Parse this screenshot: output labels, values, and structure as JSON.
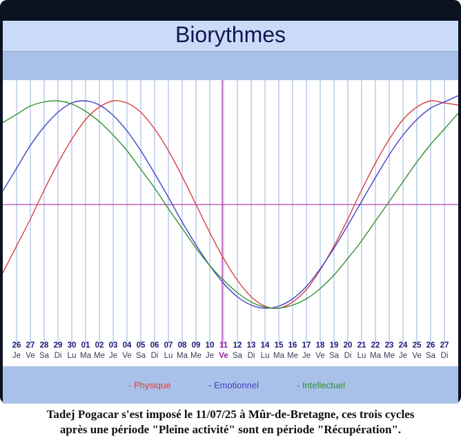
{
  "chart_data": {
    "type": "line",
    "title": "Biorythmes",
    "x_days": [
      "26",
      "27",
      "28",
      "29",
      "30",
      "01",
      "02",
      "03",
      "04",
      "05",
      "06",
      "07",
      "08",
      "09",
      "10",
      "11",
      "12",
      "13",
      "14",
      "15",
      "16",
      "17",
      "18",
      "19",
      "20",
      "21",
      "22",
      "23",
      "24",
      "25",
      "26",
      "27"
    ],
    "x_weekdays": [
      "Je",
      "Ve",
      "Sa",
      "Di",
      "Lu",
      "Ma",
      "Me",
      "Je",
      "Ve",
      "Sa",
      "Di",
      "Lu",
      "Ma",
      "Me",
      "Je",
      "Ve",
      "Sa",
      "Di",
      "Lu",
      "Ma",
      "Me",
      "Je",
      "Ve",
      "Sa",
      "Di",
      "Lu",
      "Ma",
      "Me",
      "Je",
      "Ve",
      "Sa",
      "Di"
    ],
    "highlight_day_index": 15,
    "ylim": [
      -1,
      1
    ],
    "grid": true,
    "series": [
      {
        "name": "Physique",
        "color": "#d84040",
        "values": [
          -0.4,
          -0.14,
          0.14,
          0.4,
          0.63,
          0.82,
          0.94,
          1.0,
          0.98,
          0.89,
          0.73,
          0.52,
          0.27,
          0.0,
          -0.27,
          -0.52,
          -0.73,
          -0.89,
          -0.98,
          -1.0,
          -0.94,
          -0.82,
          -0.63,
          -0.4,
          -0.14,
          0.14,
          0.4,
          0.63,
          0.82,
          0.94,
          1.0,
          0.98
        ]
      },
      {
        "name": "Emotionnel",
        "color": "#4040c8",
        "values": [
          0.35,
          0.57,
          0.75,
          0.89,
          0.98,
          1.0,
          0.96,
          0.86,
          0.71,
          0.52,
          0.3,
          0.07,
          -0.17,
          -0.39,
          -0.59,
          -0.76,
          -0.89,
          -0.97,
          -1.0,
          -0.98,
          -0.91,
          -0.79,
          -0.62,
          -0.42,
          -0.2,
          0.03,
          0.26,
          0.48,
          0.67,
          0.82,
          0.93,
          0.99
        ]
      },
      {
        "name": "Intellectuel",
        "color": "#309030",
        "values": [
          0.87,
          0.95,
          0.99,
          1.0,
          0.97,
          0.9,
          0.8,
          0.67,
          0.52,
          0.34,
          0.16,
          -0.04,
          -0.23,
          -0.42,
          -0.59,
          -0.73,
          -0.85,
          -0.94,
          -0.99,
          -1.0,
          -0.97,
          -0.91,
          -0.81,
          -0.68,
          -0.52,
          -0.35,
          -0.16,
          0.03,
          0.22,
          0.41,
          0.58,
          0.73
        ]
      }
    ],
    "legend": [
      "- Physique",
      "- Emotionnel",
      "- Intellectuel"
    ],
    "legend_position": "bottom"
  },
  "colors": {
    "grid": "#b9cce8",
    "zero_line": "#b040b0",
    "marker_line": "#b030b0",
    "day_number": "#1a1a7a",
    "weekday": "#3a3a5a",
    "highlight_weekday": "#9020a0"
  },
  "caption": {
    "line1": "Tadej Pogacar s'est imposé le 11/07/25 à Mûr-de-Bretagne, ces trois cycles",
    "line2": "après une période \"Pleine activité\" sont en période \"Récupération\"."
  }
}
